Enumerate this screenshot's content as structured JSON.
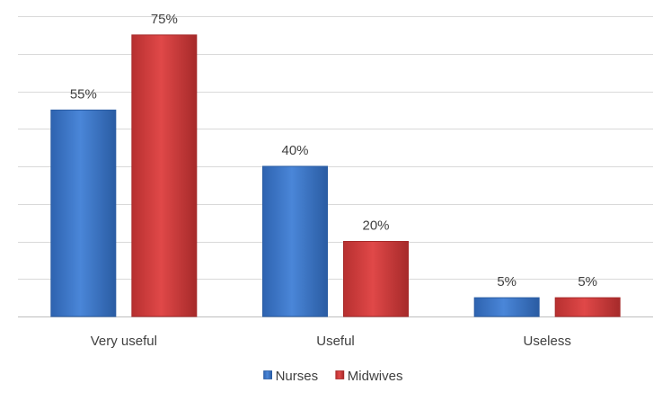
{
  "chart_data": {
    "type": "bar",
    "categories": [
      "Very useful",
      "Useful",
      "Useless"
    ],
    "series": [
      {
        "name": "Nurses",
        "values": [
          55,
          40,
          5
        ],
        "labels": [
          "55%",
          "40%",
          "5%"
        ],
        "color": "#3a74c7",
        "color_dark": "#2a5ca3"
      },
      {
        "name": "Midwives",
        "values": [
          75,
          20,
          5
        ],
        "labels": [
          "75%",
          "20%",
          "5%"
        ],
        "color": "#d43c3c",
        "color_dark": "#a62a2a"
      }
    ],
    "ylim": [
      0,
      80
    ],
    "ytick_step": 10,
    "y_tick_labels_shown": false,
    "grid": true,
    "legend": "bottom-center"
  }
}
